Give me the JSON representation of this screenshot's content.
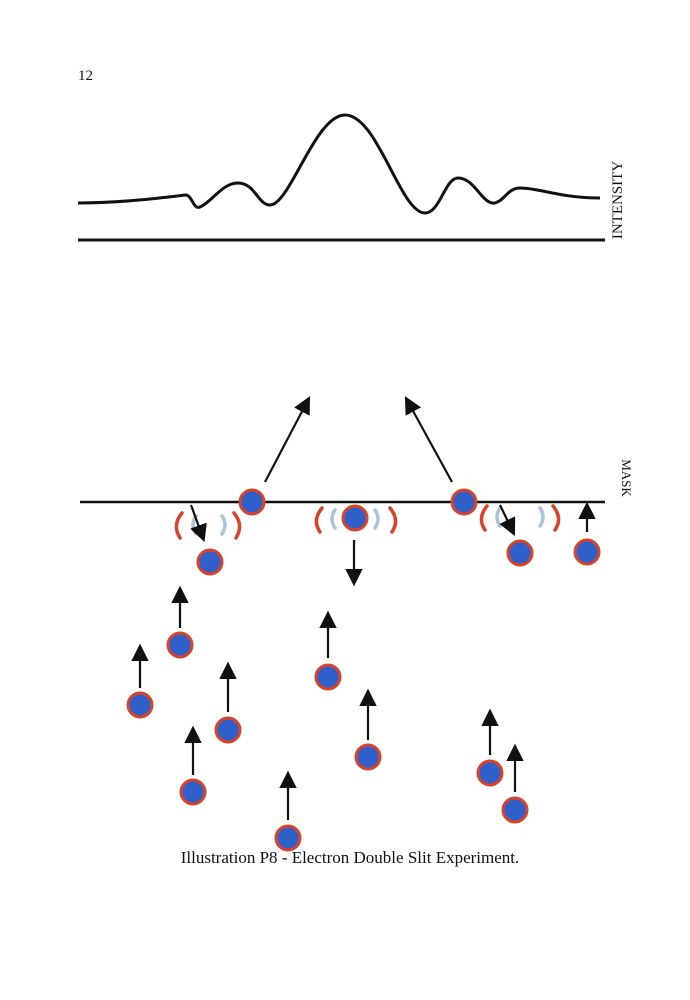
{
  "page_number": "12",
  "intensity_label": "INTENSITY",
  "mask_label": "MASK",
  "caption": "Illustration P8 - Electron Double Slit Experiment."
}
